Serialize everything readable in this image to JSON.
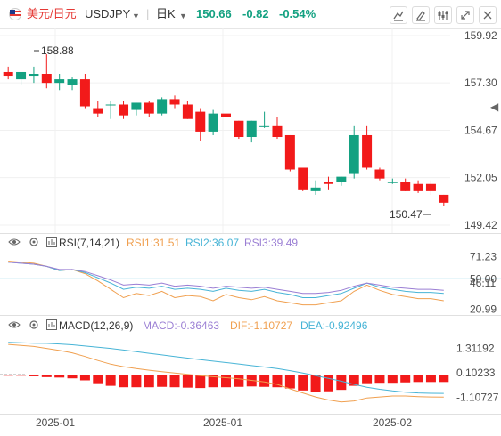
{
  "toolbar": {
    "pair_name": "美元/日元",
    "symbol": "USDJPY",
    "symbol_caret": "▼",
    "period": "日K",
    "period_caret": "▼",
    "last_price": "150.66",
    "change": "-0.82",
    "change_pct": "-0.54%",
    "icons": [
      "flag-icon",
      "indicator-icon",
      "draw-icon",
      "settings-icon",
      "fullscreen-icon",
      "close-icon"
    ]
  },
  "colors": {
    "up": "#13a181",
    "down": "#f21a1a",
    "price_label": "#f21a1a",
    "axis_text": "#4d4d4d",
    "rsi1": "#f0a050",
    "rsi2": "#47b4d6",
    "rsi3": "#9b7fd4",
    "macd": "#9b7fd4",
    "dif": "#f0a050",
    "dea": "#47b4d6"
  },
  "price_panel": {
    "y_ticks": [
      "159.92",
      "157.30",
      "154.67",
      "152.05",
      "149.42"
    ],
    "high_label": "158.88",
    "low_label": "150.47",
    "collapse_arrow": "◀"
  },
  "rsi_panel": {
    "name": "RSI(7,14,21)",
    "rsi1": "RSI1:31.51",
    "rsi2": "RSI2:36.07",
    "rsi3": "RSI3:39.49",
    "y_ticks": [
      "71.23",
      "50.00",
      "46.11",
      "20.99"
    ]
  },
  "macd_panel": {
    "name": "MACD(12,26,9)",
    "macd": "MACD:-0.36463",
    "dif": "DIF:-1.10727",
    "dea": "DEA:-0.92496",
    "y_ticks": [
      "1.31192",
      "0.10233",
      "-1.10727"
    ]
  },
  "x_axis": {
    "labels": [
      "2025-01",
      "2025-01",
      "2025-02"
    ]
  },
  "chart_data": [
    {
      "type": "candlestick",
      "title": "USDJPY 日K",
      "y_range": [
        149.42,
        159.92
      ],
      "candles": [
        {
          "o": 157.9,
          "h": 158.2,
          "l": 157.5,
          "c": 157.7
        },
        {
          "o": 157.5,
          "h": 157.9,
          "l": 157.2,
          "c": 157.9
        },
        {
          "o": 157.7,
          "h": 158.2,
          "l": 157.3,
          "c": 157.8
        },
        {
          "o": 157.8,
          "h": 158.88,
          "l": 157.0,
          "c": 157.3
        },
        {
          "o": 157.3,
          "h": 157.8,
          "l": 156.9,
          "c": 157.5
        },
        {
          "o": 157.2,
          "h": 157.6,
          "l": 156.9,
          "c": 157.5
        },
        {
          "o": 157.5,
          "h": 157.8,
          "l": 155.9,
          "c": 156.0
        },
        {
          "o": 155.9,
          "h": 156.3,
          "l": 155.4,
          "c": 155.6
        },
        {
          "o": 156.1,
          "h": 156.3,
          "l": 155.3,
          "c": 156.1
        },
        {
          "o": 156.1,
          "h": 156.3,
          "l": 155.3,
          "c": 155.5
        },
        {
          "o": 155.8,
          "h": 156.2,
          "l": 155.5,
          "c": 156.2
        },
        {
          "o": 156.2,
          "h": 156.3,
          "l": 155.4,
          "c": 155.6
        },
        {
          "o": 155.6,
          "h": 156.5,
          "l": 155.5,
          "c": 156.4
        },
        {
          "o": 156.4,
          "h": 156.6,
          "l": 155.9,
          "c": 156.1
        },
        {
          "o": 156.1,
          "h": 156.3,
          "l": 155.3,
          "c": 155.3
        },
        {
          "o": 155.7,
          "h": 155.9,
          "l": 154.1,
          "c": 154.6
        },
        {
          "o": 154.6,
          "h": 155.8,
          "l": 154.4,
          "c": 155.6
        },
        {
          "o": 155.6,
          "h": 155.7,
          "l": 155.1,
          "c": 155.4
        },
        {
          "o": 155.2,
          "h": 155.2,
          "l": 154.2,
          "c": 154.3
        },
        {
          "o": 154.3,
          "h": 155.2,
          "l": 154.0,
          "c": 155.2
        },
        {
          "o": 154.9,
          "h": 155.7,
          "l": 154.8,
          "c": 154.9
        },
        {
          "o": 154.9,
          "h": 155.4,
          "l": 154.2,
          "c": 154.3
        },
        {
          "o": 154.4,
          "h": 154.4,
          "l": 152.4,
          "c": 152.5
        },
        {
          "o": 152.6,
          "h": 152.6,
          "l": 151.3,
          "c": 151.4
        },
        {
          "o": 151.3,
          "h": 151.9,
          "l": 151.1,
          "c": 151.5
        },
        {
          "o": 151.8,
          "h": 152.1,
          "l": 151.4,
          "c": 151.7
        },
        {
          "o": 151.8,
          "h": 152.1,
          "l": 151.6,
          "c": 152.1
        },
        {
          "o": 152.3,
          "h": 154.9,
          "l": 152.0,
          "c": 154.4
        },
        {
          "o": 154.4,
          "h": 154.9,
          "l": 152.5,
          "c": 152.6
        },
        {
          "o": 152.5,
          "h": 152.6,
          "l": 151.9,
          "c": 152.0
        },
        {
          "o": 151.8,
          "h": 152.0,
          "l": 151.7,
          "c": 151.8
        },
        {
          "o": 151.8,
          "h": 152.0,
          "l": 151.3,
          "c": 151.3
        },
        {
          "o": 151.7,
          "h": 151.9,
          "l": 151.2,
          "c": 151.3
        },
        {
          "o": 151.7,
          "h": 151.9,
          "l": 151.1,
          "c": 151.3
        },
        {
          "o": 151.1,
          "h": 151.1,
          "l": 150.47,
          "c": 150.66
        }
      ]
    },
    {
      "type": "line",
      "title": "RSI(7,14,21)",
      "y_range": [
        17,
        76
      ],
      "series": [
        {
          "name": "RSI1",
          "values": [
            67,
            66,
            65,
            62,
            58,
            59,
            55,
            48,
            40,
            32,
            36,
            34,
            38,
            32,
            34,
            33,
            29,
            35,
            32,
            30,
            33,
            29,
            27,
            25,
            25,
            27,
            29,
            38,
            44,
            39,
            35,
            33,
            31,
            31,
            29
          ]
        },
        {
          "name": "RSI2",
          "values": [
            66,
            65,
            64,
            62,
            58,
            59,
            56,
            51,
            46,
            40,
            42,
            41,
            43,
            40,
            41,
            40,
            38,
            41,
            39,
            38,
            40,
            37,
            35,
            32,
            32,
            34,
            36,
            41,
            46,
            42,
            40,
            38,
            37,
            37,
            36
          ]
        },
        {
          "name": "RSI3",
          "values": [
            66,
            65,
            64,
            62,
            59,
            59,
            57,
            53,
            49,
            44,
            45,
            44,
            46,
            43,
            44,
            43,
            41,
            43,
            42,
            41,
            42,
            40,
            38,
            36,
            36,
            37,
            39,
            43,
            46,
            44,
            42,
            41,
            40,
            40,
            39
          ]
        }
      ]
    },
    {
      "type": "bar",
      "title": "MACD(12,26,9)",
      "y_range": [
        -1.8,
        1.9
      ],
      "values": [
        -0.05,
        -0.05,
        -0.08,
        -0.12,
        -0.14,
        -0.18,
        -0.28,
        -0.42,
        -0.55,
        -0.62,
        -0.62,
        -0.62,
        -0.6,
        -0.62,
        -0.64,
        -0.66,
        -0.62,
        -0.62,
        -0.6,
        -0.58,
        -0.6,
        -0.62,
        -0.68,
        -0.78,
        -0.84,
        -0.82,
        -0.75,
        -0.55,
        -0.42,
        -0.4,
        -0.4,
        -0.38,
        -0.36,
        -0.36,
        -0.36
      ],
      "series": [
        {
          "name": "DIF",
          "values": [
            1.5,
            1.45,
            1.4,
            1.3,
            1.2,
            1.08,
            0.9,
            0.7,
            0.52,
            0.4,
            0.3,
            0.22,
            0.15,
            0.08,
            0.02,
            -0.05,
            -0.1,
            -0.15,
            -0.2,
            -0.28,
            -0.36,
            -0.48,
            -0.7,
            -0.9,
            -1.1,
            -1.25,
            -1.35,
            -1.3,
            -1.15,
            -1.1,
            -1.05,
            -1.05,
            -1.08,
            -1.1,
            -1.10727
          ]
        },
        {
          "name": "DEA",
          "values": [
            1.6,
            1.58,
            1.56,
            1.55,
            1.52,
            1.48,
            1.42,
            1.36,
            1.3,
            1.22,
            1.14,
            1.06,
            0.98,
            0.9,
            0.82,
            0.74,
            0.67,
            0.6,
            0.53,
            0.45,
            0.38,
            0.3,
            0.2,
            0.08,
            -0.05,
            -0.18,
            -0.32,
            -0.48,
            -0.62,
            -0.72,
            -0.8,
            -0.86,
            -0.9,
            -0.92,
            -0.92496
          ]
        }
      ]
    }
  ]
}
